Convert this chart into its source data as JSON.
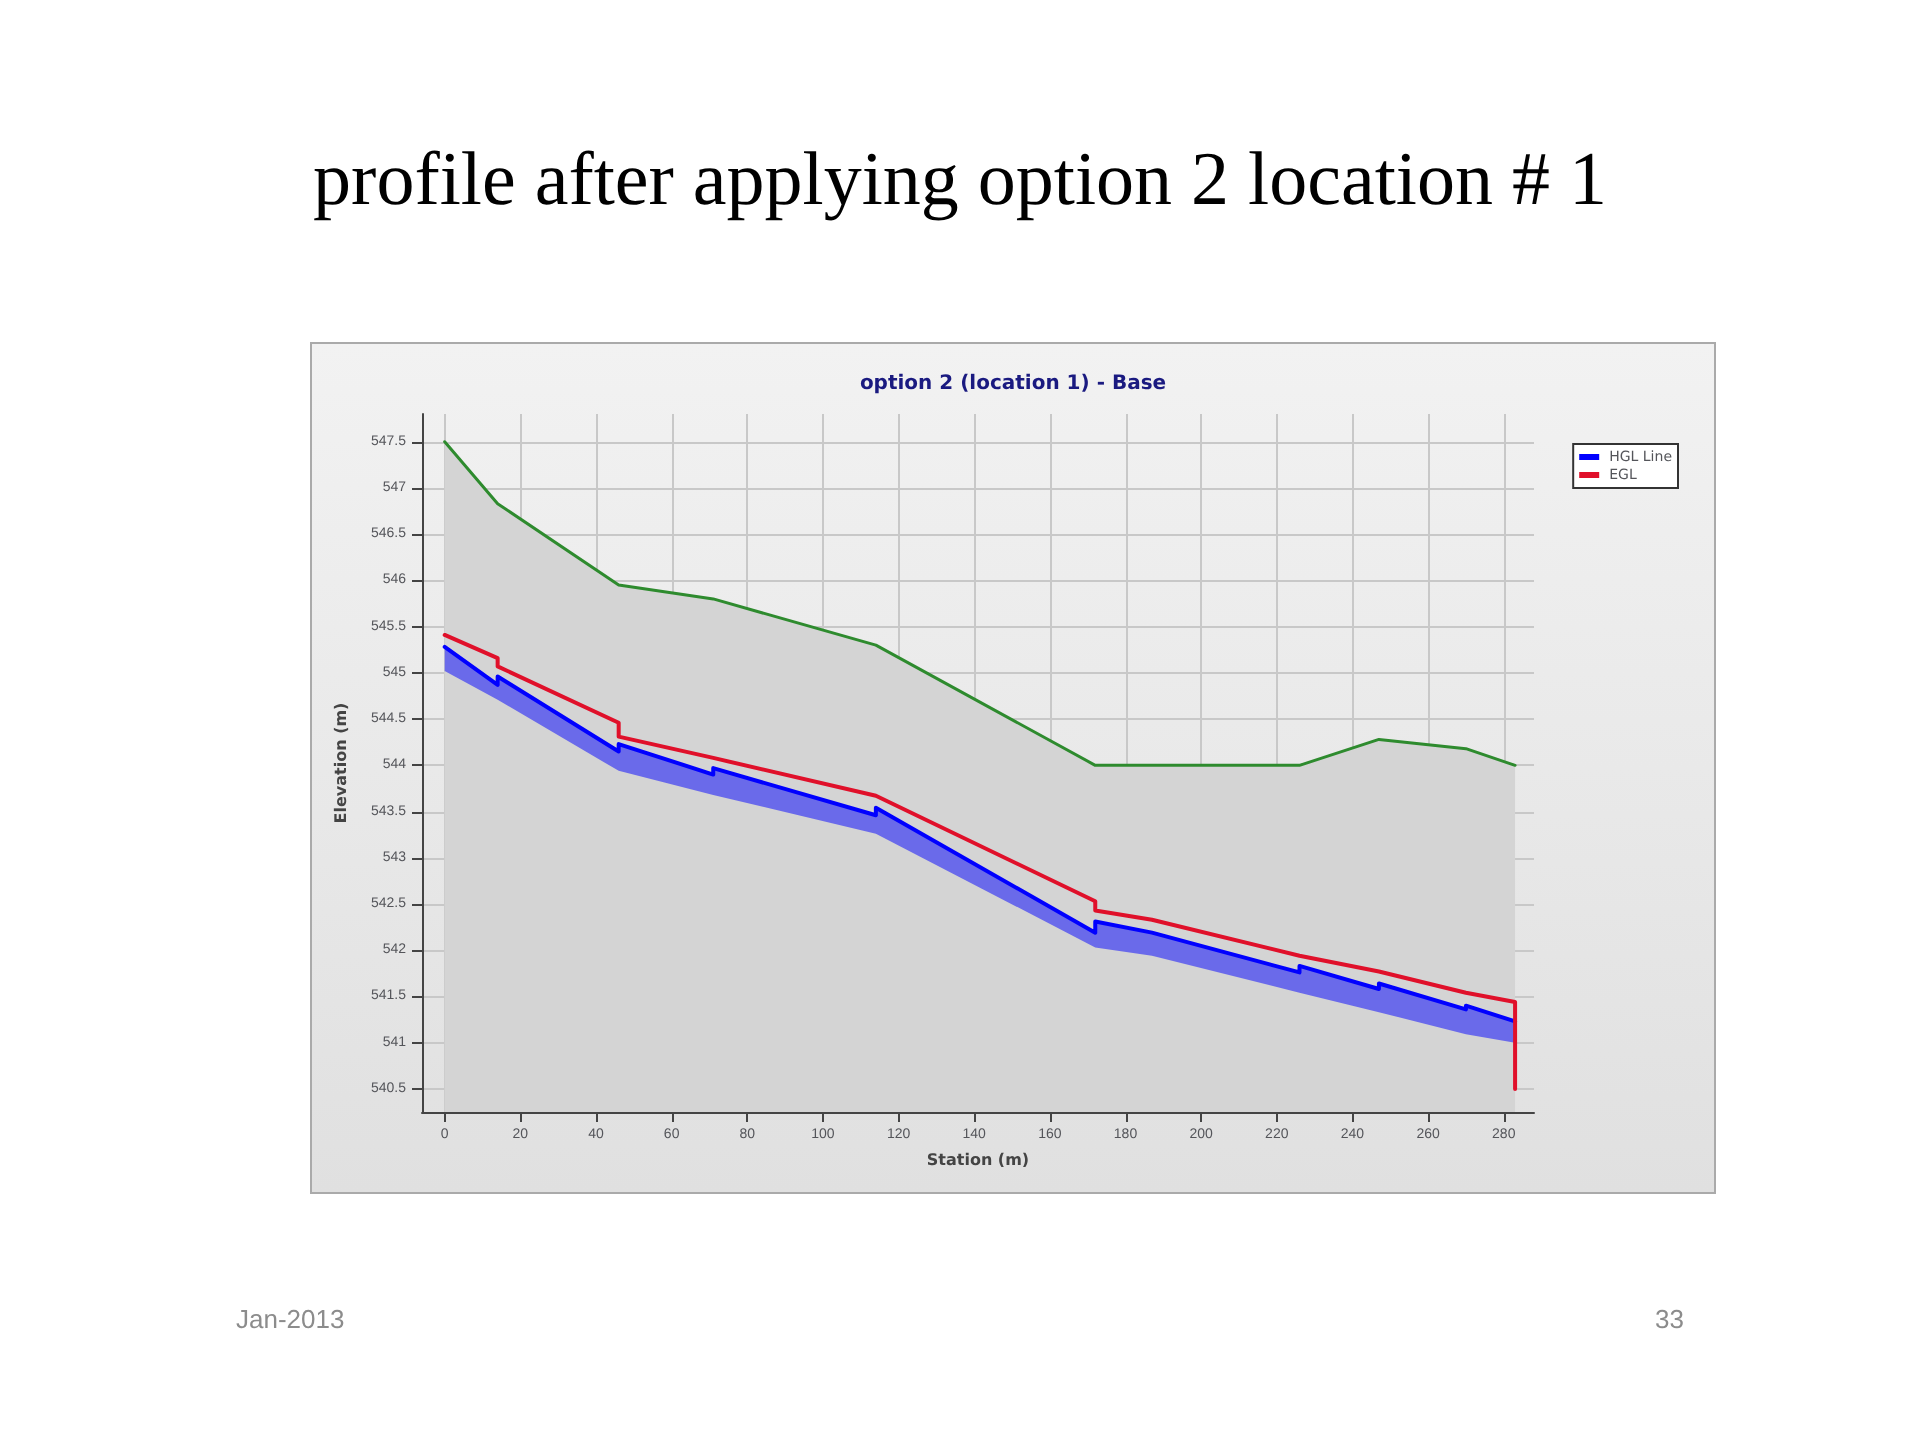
{
  "chart_data": {
    "type": "line",
    "title": "profile after applying option 2 location # 1",
    "subtitle": "option 2 (location 1) - Base",
    "xlabel": "Station (m)",
    "ylabel": "Elevation (m)",
    "xlim": [
      -6,
      288
    ],
    "xticks": [
      0,
      20,
      40,
      60,
      80,
      100,
      120,
      140,
      160,
      180,
      200,
      220,
      240,
      260,
      280
    ],
    "ylim": [
      540.25,
      547.8
    ],
    "yticks": [
      540.5,
      541,
      541.5,
      542,
      542.5,
      543,
      543.5,
      544,
      544.5,
      545,
      545.5,
      546,
      546.5,
      547,
      547.5
    ],
    "grid": true,
    "legend": "top right",
    "marker": "none",
    "line_style": "solid",
    "series": [
      {
        "type": "area",
        "color": "#2e8b2e",
        "x": [
          0,
          14,
          46,
          71,
          114,
          172,
          187,
          226,
          247,
          270,
          283
        ],
        "values": [
          547.5,
          546.83,
          545.95,
          545.8,
          545.3,
          544,
          544,
          544,
          544.28,
          544.18,
          544
        ]
      },
      {
        "name": "HGL Line",
        "color": "#0000ff",
        "x": [
          0,
          14,
          14,
          46,
          46,
          71,
          71,
          114,
          114,
          172,
          172,
          187,
          226,
          226,
          247,
          247,
          270,
          270,
          283
        ],
        "values": [
          545.28,
          544.87,
          544.96,
          544.15,
          544.23,
          543.9,
          543.97,
          543.46,
          543.54,
          542.19,
          542.31,
          542.19,
          541.76,
          541.83,
          541.58,
          541.64,
          541.36,
          541.4,
          541.23
        ],
        "upper": [
          545.28,
          544.87,
          544.96,
          544.15,
          544.23,
          543.9,
          543.97,
          543.46,
          543.54,
          542.19,
          542.31,
          542.19,
          541.76,
          541.83,
          541.58,
          541.64,
          541.36,
          541.4,
          541.23
        ],
        "lower": [
          545.02,
          544.71,
          544.71,
          543.94,
          543.94,
          543.68,
          543.68,
          543.26,
          543.26,
          542.03,
          542.03,
          541.94,
          541.54,
          541.54,
          541.33,
          541.33,
          541.09,
          541.09,
          541.0
        ]
      },
      {
        "name": "EGL",
        "color": "#e0102a",
        "x": [
          0,
          14,
          14,
          46,
          46,
          71,
          114,
          172,
          172,
          187,
          226,
          247,
          270,
          283,
          283
        ],
        "values": [
          545.41,
          545.16,
          545.07,
          544.46,
          544.31,
          544.08,
          543.67,
          542.53,
          542.43,
          542.33,
          541.94,
          541.77,
          541.54,
          541.44,
          540.5
        ]
      }
    ],
    "annotations": [
      "Jan-2013",
      "33"
    ]
  }
}
